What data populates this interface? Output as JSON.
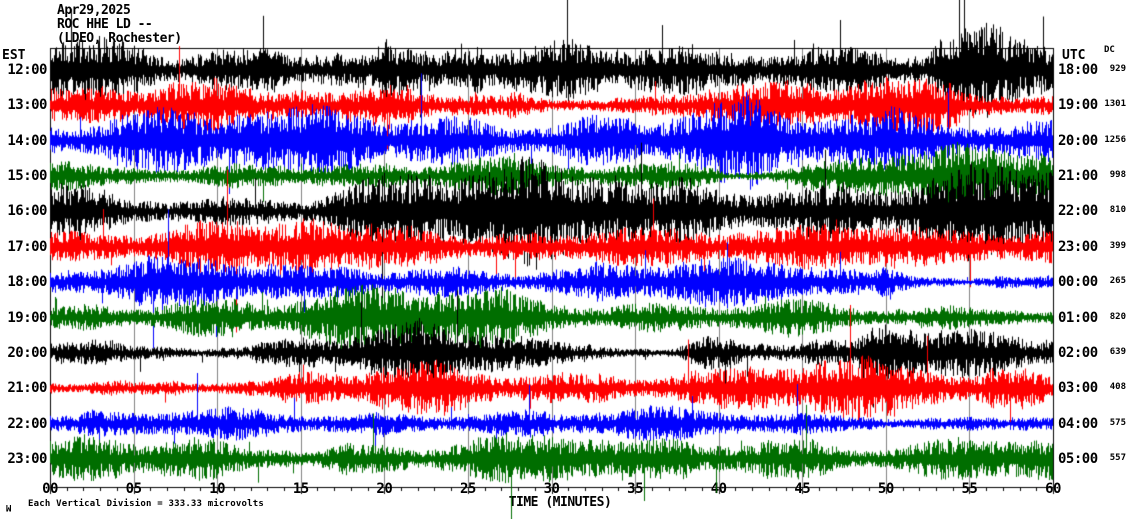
{
  "header": {
    "date": "Apr29,2025",
    "station": "ROC HHE LD --",
    "location": "(LDEO, Rochester)"
  },
  "chart_data": {
    "type": "line",
    "variant": "helicorder-seismogram",
    "title": "ROC HHE LD -- (LDEO, Rochester)",
    "date": "Apr29,2025",
    "xlabel": "TIME (MINUTES)",
    "x_range_minutes": [
      0,
      60
    ],
    "x_ticks": [
      "00",
      "05",
      "10",
      "15",
      "20",
      "25",
      "30",
      "35",
      "40",
      "45",
      "50",
      "55",
      "60"
    ],
    "x_minor_tick_minutes": 1,
    "left_axis_label": "EST",
    "right_axis_label": "UTC",
    "dc_column_label": "DC",
    "grid": {
      "vertical_every_minutes": 5,
      "color": "#808080",
      "on": true
    },
    "frame_color": "#000000",
    "trace_color_cycle": [
      "#000000",
      "#ff0000",
      "#0000ff",
      "#006e00"
    ],
    "rows": [
      {
        "est": "12:00",
        "utc": "18:00",
        "dc": "929",
        "color": "#000000",
        "amp": 29,
        "spike_p": 0.012,
        "spike_mul": 2.4
      },
      {
        "est": "13:00",
        "utc": "19:00",
        "dc": "1301",
        "color": "#ff0000",
        "amp": 23,
        "spike_p": 0.011,
        "spike_mul": 3.4
      },
      {
        "est": "14:00",
        "utc": "20:00",
        "dc": "1256",
        "color": "#0000ff",
        "amp": 18,
        "spike_p": 0.007,
        "spike_mul": 2.4
      },
      {
        "est": "15:00",
        "utc": "21:00",
        "dc": "998",
        "color": "#006e00",
        "amp": 14,
        "spike_p": 0.006,
        "spike_mul": 2.2
      },
      {
        "est": "16:00",
        "utc": "22:00",
        "dc": "810",
        "color": "#000000",
        "amp": 21,
        "spike_p": 0.008,
        "spike_mul": 2.4
      },
      {
        "est": "17:00",
        "utc": "23:00",
        "dc": "399",
        "color": "#ff0000",
        "amp": 16,
        "spike_p": 0.009,
        "spike_mul": 2.8
      },
      {
        "est": "18:00",
        "utc": "00:00",
        "dc": "265",
        "color": "#0000ff",
        "amp": 13,
        "spike_p": 0.006,
        "spike_mul": 2.3
      },
      {
        "est": "19:00",
        "utc": "01:00",
        "dc": "820",
        "color": "#006e00",
        "amp": 13,
        "spike_p": 0.006,
        "spike_mul": 2.2
      },
      {
        "est": "20:00",
        "utc": "02:00",
        "dc": "639",
        "color": "#000000",
        "amp": 17,
        "spike_p": 0.007,
        "spike_mul": 2.2
      },
      {
        "est": "21:00",
        "utc": "03:00",
        "dc": "408",
        "color": "#ff0000",
        "amp": 13,
        "spike_p": 0.007,
        "spike_mul": 2.6
      },
      {
        "est": "22:00",
        "utc": "04:00",
        "dc": "575",
        "color": "#0000ff",
        "amp": 8,
        "spike_p": 0.006,
        "spike_mul": 3.2
      },
      {
        "est": "23:00",
        "utc": "05:00",
        "dc": "557",
        "color": "#006e00",
        "amp": 13,
        "spike_p": 0.01,
        "spike_mul": 2.8
      }
    ],
    "footer": "Each Vertical Division = 333.33 microvolts",
    "watermark": "M"
  }
}
